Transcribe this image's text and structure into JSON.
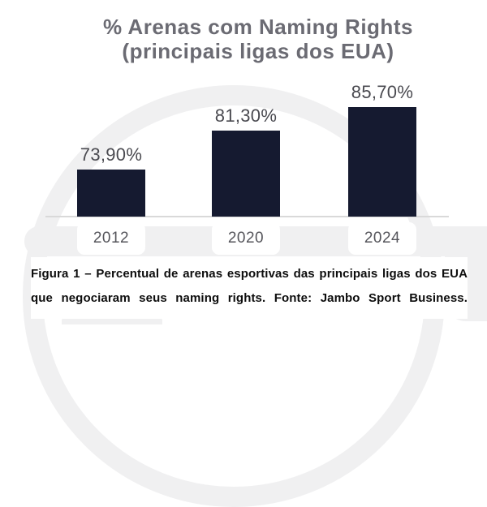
{
  "chart_data": {
    "type": "bar",
    "title": "% Arenas com Naming Rights (principais ligas dos EUA)",
    "title_lines": [
      "% Arenas com Naming Rights",
      "(principais ligas dos EUA)"
    ],
    "categories": [
      "2012",
      "2020",
      "2024"
    ],
    "values": [
      73.9,
      81.3,
      85.7
    ],
    "value_labels": [
      "73,90%",
      "81,30%",
      "85,70%"
    ],
    "xlabel": "",
    "ylabel": "",
    "ylim": [
      65,
      90
    ],
    "grid": false,
    "legend": null
  },
  "caption": {
    "lines": [
      "Figura 1 – Percentual de arenas esportivas das principais ligas dos EUA",
      "que negociaram seus naming rights. Fonte: Jambo Sport Business."
    ],
    "text": "Figura 1 – Percentual de arenas esportivas das principais ligas dos EUA que negociaram seus naming rights. Fonte: Jambo Sport Business."
  },
  "colors": {
    "bar": "#151a30",
    "watermark": "#f0f0f1",
    "title": "#6b6b73",
    "value_label": "#4a4a50",
    "tick_label": "#55555b",
    "axis_line": "#d9d9d9"
  }
}
